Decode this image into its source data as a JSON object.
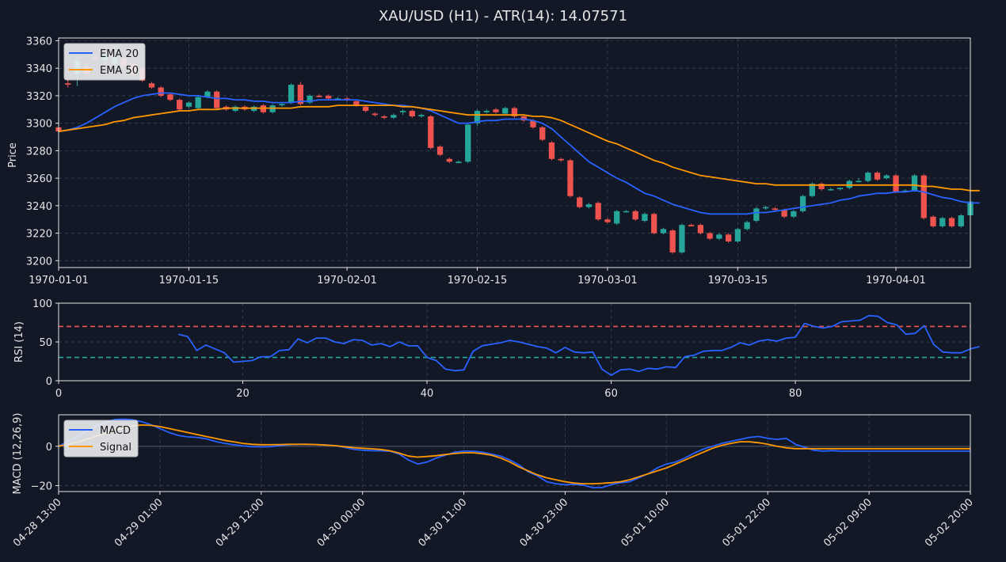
{
  "colors": {
    "background": "#131826",
    "frame": "#e6e6e6",
    "grid": "#3a4155",
    "bull": "#26a69a",
    "bear": "#ef5350",
    "ema20": "#2962ff",
    "ema50": "#ff9800",
    "rsi": "#2962ff",
    "overbought": "#ef5350",
    "oversold": "#26a69a",
    "macd": "#2962ff",
    "signal": "#ff9800",
    "zero_line": "#4a5160"
  },
  "chart_data": [
    {
      "type": "candlestick",
      "title": "XAU/USD (H1) - ATR(14): 14.07571",
      "ylabel": "Price",
      "ylim": [
        3195,
        3362
      ],
      "yticks": [
        "3200",
        "3220",
        "3240",
        "3260",
        "3280",
        "3300",
        "3320",
        "3340",
        "3360"
      ],
      "xticks": [
        "1970-01-01",
        "1970-01-15",
        "1970-02-01",
        "1970-02-15",
        "1970-03-01",
        "1970-03-15",
        "1970-04-01"
      ],
      "xtick_index": [
        0,
        14,
        31,
        45,
        59,
        73,
        90
      ],
      "grid": true,
      "legend_position": "top-left",
      "candles": [
        [
          3297,
          3328,
          3293,
          3294
        ],
        [
          3329,
          3332,
          3326,
          3328
        ],
        [
          3336,
          3348,
          3327,
          3345
        ],
        [
          3341,
          3343,
          3334,
          3336
        ],
        [
          3348,
          3350,
          3345,
          3347
        ],
        [
          3346,
          3352,
          3343,
          3350
        ],
        [
          3344,
          3356,
          3339,
          3349
        ],
        [
          3347,
          3348,
          3339,
          3341
        ],
        [
          3343,
          3346,
          3334,
          3336
        ],
        [
          3340,
          3341,
          3330,
          3331
        ],
        [
          3329,
          3330,
          3325,
          3326
        ],
        [
          3326,
          3327,
          3319,
          3320
        ],
        [
          3321,
          3322,
          3316,
          3317
        ],
        [
          3317,
          3318,
          3309,
          3310
        ],
        [
          3312,
          3316,
          3311,
          3315
        ],
        [
          3311,
          3320,
          3310,
          3319
        ],
        [
          3319,
          3324,
          3318,
          3323
        ],
        [
          3323,
          3324,
          3310,
          3311
        ],
        [
          3312,
          3313,
          3309,
          3310
        ],
        [
          3309,
          3313,
          3308,
          3312
        ],
        [
          3312,
          3313,
          3309,
          3310
        ],
        [
          3309,
          3313,
          3308,
          3312
        ],
        [
          3313,
          3314,
          3307,
          3308
        ],
        [
          3308,
          3314,
          3307,
          3313
        ],
        [
          3313,
          3315,
          3312,
          3314
        ],
        [
          3315,
          3329,
          3314,
          3328
        ],
        [
          3328,
          3330,
          3313,
          3314
        ],
        [
          3315,
          3321,
          3314,
          3320
        ],
        [
          3320,
          3321,
          3319,
          3319
        ],
        [
          3320,
          3321,
          3317,
          3318
        ],
        [
          3318,
          3319,
          3317,
          3318
        ],
        [
          3318,
          3319,
          3316,
          3317
        ],
        [
          3316,
          3317,
          3312,
          3313
        ],
        [
          3312,
          3313,
          3308,
          3309
        ],
        [
          3307,
          3308,
          3305,
          3306
        ],
        [
          3305,
          3306,
          3303,
          3304
        ],
        [
          3304,
          3307,
          3303,
          3306
        ],
        [
          3308,
          3310,
          3306,
          3309
        ],
        [
          3309,
          3310,
          3304,
          3305
        ],
        [
          3305,
          3307,
          3304,
          3306
        ],
        [
          3305,
          3306,
          3281,
          3282
        ],
        [
          3283,
          3284,
          3276,
          3277
        ],
        [
          3274,
          3275,
          3271,
          3272
        ],
        [
          3271,
          3273,
          3271,
          3272
        ],
        [
          3272,
          3300,
          3271,
          3299
        ],
        [
          3300,
          3310,
          3298,
          3309
        ],
        [
          3308,
          3310,
          3307,
          3309
        ],
        [
          3310,
          3311,
          3307,
          3308
        ],
        [
          3307,
          3312,
          3306,
          3311
        ],
        [
          3311,
          3312,
          3304,
          3305
        ],
        [
          3305,
          3306,
          3301,
          3302
        ],
        [
          3302,
          3303,
          3296,
          3297
        ],
        [
          3297,
          3298,
          3287,
          3288
        ],
        [
          3286,
          3287,
          3273,
          3274
        ],
        [
          3274,
          3275,
          3272,
          3273
        ],
        [
          3273,
          3274,
          3246,
          3247
        ],
        [
          3246,
          3247,
          3238,
          3239
        ],
        [
          3239,
          3242,
          3238,
          3241
        ],
        [
          3242,
          3243,
          3229,
          3230
        ],
        [
          3230,
          3231,
          3227,
          3228
        ],
        [
          3227,
          3237,
          3226,
          3236
        ],
        [
          3236,
          3237,
          3235,
          3236
        ],
        [
          3236,
          3237,
          3229,
          3230
        ],
        [
          3229,
          3235,
          3228,
          3234
        ],
        [
          3234,
          3235,
          3219,
          3220
        ],
        [
          3220,
          3224,
          3219,
          3223
        ],
        [
          3222,
          3223,
          3205,
          3206
        ],
        [
          3206,
          3227,
          3205,
          3226
        ],
        [
          3226,
          3227,
          3225,
          3225
        ],
        [
          3226,
          3227,
          3219,
          3220
        ],
        [
          3220,
          3221,
          3215,
          3216
        ],
        [
          3216,
          3220,
          3215,
          3219
        ],
        [
          3219,
          3220,
          3213,
          3214
        ],
        [
          3214,
          3224,
          3213,
          3223
        ],
        [
          3223,
          3229,
          3222,
          3228
        ],
        [
          3229,
          3239,
          3228,
          3238
        ],
        [
          3238,
          3240,
          3237,
          3239
        ],
        [
          3238,
          3239,
          3236,
          3237
        ],
        [
          3237,
          3238,
          3231,
          3232
        ],
        [
          3232,
          3237,
          3231,
          3236
        ],
        [
          3236,
          3248,
          3235,
          3247
        ],
        [
          3247,
          3257,
          3246,
          3256
        ],
        [
          3256,
          3257,
          3251,
          3252
        ],
        [
          3252,
          3253,
          3251,
          3252
        ],
        [
          3252,
          3253,
          3251,
          3253
        ],
        [
          3253,
          3259,
          3252,
          3258
        ],
        [
          3258,
          3260,
          3257,
          3258
        ],
        [
          3258,
          3265,
          3257,
          3264
        ],
        [
          3264,
          3265,
          3258,
          3259
        ],
        [
          3260,
          3263,
          3259,
          3262
        ],
        [
          3262,
          3263,
          3249,
          3250
        ],
        [
          3251,
          3252,
          3250,
          3251
        ],
        [
          3251,
          3263,
          3250,
          3262
        ],
        [
          3262,
          3263,
          3230,
          3231
        ],
        [
          3232,
          3233,
          3224,
          3225
        ],
        [
          3225,
          3232,
          3224,
          3231
        ],
        [
          3231,
          3232,
          3224,
          3225
        ],
        [
          3225,
          3234,
          3224,
          3233
        ],
        [
          3233,
          3244,
          3232,
          3243
        ]
      ],
      "series": [
        {
          "name": "EMA 20",
          "values": [
            3294,
            3295,
            3297,
            3300,
            3304,
            3308,
            3312,
            3315,
            3318,
            3320,
            3321,
            3322,
            3322,
            3321,
            3320,
            3320,
            3319,
            3318,
            3318,
            3317,
            3317,
            3316,
            3316,
            3315,
            3315,
            3315,
            3316,
            3316,
            3317,
            3317,
            3317,
            3317,
            3317,
            3316,
            3315,
            3314,
            3313,
            3313,
            3312,
            3311,
            3309,
            3306,
            3303,
            3300,
            3300,
            3301,
            3302,
            3302,
            3303,
            3303,
            3303,
            3302,
            3300,
            3296,
            3290,
            3284,
            3278,
            3272,
            3268,
            3264,
            3260,
            3257,
            3253,
            3249,
            3247,
            3244,
            3241,
            3239,
            3237,
            3235,
            3234,
            3234,
            3234,
            3234,
            3234,
            3235,
            3235,
            3236,
            3237,
            3238,
            3239,
            3240,
            3241,
            3242,
            3244,
            3245,
            3247,
            3248,
            3249,
            3249,
            3250,
            3250,
            3251,
            3250,
            3248,
            3246,
            3245,
            3243,
            3242,
            3242
          ]
        },
        {
          "name": "EMA 50",
          "values": [
            3294,
            3295,
            3296,
            3297,
            3298,
            3299,
            3301,
            3302,
            3304,
            3305,
            3306,
            3307,
            3308,
            3309,
            3309,
            3310,
            3310,
            3310,
            3311,
            3311,
            3311,
            3311,
            3311,
            3311,
            3311,
            3311,
            3312,
            3312,
            3312,
            3312,
            3313,
            3313,
            3313,
            3313,
            3313,
            3313,
            3313,
            3312,
            3312,
            3311,
            3310,
            3309,
            3308,
            3307,
            3306,
            3306,
            3306,
            3306,
            3306,
            3306,
            3306,
            3305,
            3305,
            3304,
            3302,
            3299,
            3296,
            3293,
            3290,
            3287,
            3285,
            3282,
            3279,
            3276,
            3273,
            3271,
            3268,
            3266,
            3264,
            3262,
            3261,
            3260,
            3259,
            3258,
            3257,
            3256,
            3256,
            3255,
            3255,
            3255,
            3255,
            3255,
            3255,
            3255,
            3255,
            3255,
            3255,
            3255,
            3255,
            3255,
            3255,
            3255,
            3255,
            3254,
            3254,
            3253,
            3252,
            3252,
            3251,
            3251
          ]
        }
      ]
    },
    {
      "type": "line",
      "ylabel": "RSI (14)",
      "ylim": [
        0,
        100
      ],
      "xlim": [
        0,
        99
      ],
      "yticks": [
        "0",
        "50",
        "100"
      ],
      "xticks": [
        "0",
        "20",
        "40",
        "60",
        "80"
      ],
      "xtick_values": [
        0,
        20,
        40,
        60,
        80
      ],
      "overbought": 70,
      "oversold": 30,
      "grid": true,
      "series": [
        {
          "name": "RSI",
          "x_start": 13,
          "values": [
            60,
            57,
            39,
            46,
            41,
            36,
            24,
            25,
            26,
            31,
            31,
            39,
            40,
            54,
            49,
            55,
            55,
            50,
            48,
            53,
            52,
            46,
            48,
            44,
            50,
            45,
            45,
            30,
            26,
            15,
            13,
            14,
            38,
            45,
            47,
            49,
            52,
            50,
            47,
            44,
            42,
            36,
            43,
            37,
            36,
            37,
            15,
            7,
            14,
            15,
            12,
            16,
            15,
            18,
            17,
            31,
            33,
            38,
            39,
            39,
            43,
            49,
            46,
            51,
            53,
            51,
            55,
            56,
            74,
            70,
            68,
            70,
            76,
            77,
            78,
            84,
            83,
            75,
            72,
            60,
            61,
            71,
            47,
            37,
            36,
            36,
            41,
            44
          ]
        }
      ]
    },
    {
      "type": "line",
      "ylabel": "MACD (12,26,9)",
      "ylim": [
        -23,
        16
      ],
      "yticks": [
        "−20",
        "0"
      ],
      "ytick_values": [
        -20,
        0
      ],
      "xticks": [
        "04-28 13:00",
        "04-29 01:00",
        "04-29 12:00",
        "04-30 00:00",
        "04-30 11:00",
        "04-30 23:00",
        "05-01 10:00",
        "05-01 22:00",
        "05-02 09:00",
        "05-02 20:00"
      ],
      "xtick_index": [
        0,
        11,
        22,
        33,
        44,
        55,
        66,
        77,
        88,
        99
      ],
      "legend_position": "top-left",
      "grid": true,
      "series": [
        {
          "name": "MACD",
          "values": [
            0,
            2.5,
            5,
            7.5,
            10,
            12,
            13.5,
            13.8,
            13.5,
            12.5,
            11,
            9,
            7,
            5.5,
            4.8,
            4.5,
            3.8,
            2.5,
            1.5,
            0.8,
            0.2,
            -0.2,
            -0.3,
            -0.2,
            0.3,
            0.8,
            1,
            1,
            0.9,
            0.7,
            0.3,
            -0.5,
            -1.5,
            -2,
            -2.2,
            -2.3,
            -2.5,
            -4,
            -7,
            -9,
            -8,
            -6,
            -4.5,
            -3,
            -2.5,
            -2.5,
            -3,
            -4,
            -5,
            -7,
            -9.5,
            -13,
            -15,
            -18,
            -19,
            -19.5,
            -19.3,
            -19.8,
            -21,
            -21,
            -19.5,
            -18.5,
            -18,
            -16,
            -14,
            -11,
            -9,
            -8,
            -6,
            -3.5,
            -1.5,
            0,
            1.5,
            2.5,
            3.5,
            4.5,
            5,
            4,
            3.5,
            4,
            1,
            -0.5,
            -2,
            -2.5,
            -2.2,
            -2.5,
            -2.5,
            -2.5,
            -2.5,
            -2.5,
            -2.5,
            -2.5,
            -2.5,
            -2.5,
            -2.5,
            -2.5,
            -2.5,
            -2.5,
            -2.5,
            -2.5
          ]
        },
        {
          "name": "Signal",
          "values": [
            0,
            1,
            2,
            3.5,
            5,
            6.5,
            8,
            9.3,
            10.3,
            10.8,
            10.6,
            10,
            9,
            8,
            7,
            6,
            5,
            4,
            3,
            2.3,
            1.5,
            1,
            0.8,
            0.8,
            0.9,
            1,
            1,
            1,
            0.9,
            0.6,
            0.3,
            -0.2,
            -0.7,
            -1,
            -1.3,
            -1.6,
            -2.3,
            -3.5,
            -5,
            -5.5,
            -5.2,
            -4.8,
            -4.2,
            -3.7,
            -3.3,
            -3.3,
            -3.8,
            -4.5,
            -6,
            -8,
            -10.5,
            -12.5,
            -14.5,
            -16,
            -17,
            -18,
            -18.7,
            -19,
            -19,
            -18.8,
            -18.5,
            -18,
            -17,
            -15.5,
            -14,
            -12.5,
            -11,
            -9,
            -7,
            -5,
            -3,
            -1,
            0.5,
            1.5,
            2.3,
            2.3,
            1.8,
            1,
            0,
            -0.8,
            -1.2,
            -1.2,
            -1.2,
            -1.2,
            -1.2,
            -1.2,
            -1.2,
            -1.2,
            -1.2,
            -1.2,
            -1.2,
            -1.2,
            -1.2,
            -1.2,
            -1.2,
            -1.2,
            -1.2,
            -1.2,
            -1.2,
            -1.2
          ]
        }
      ]
    }
  ]
}
